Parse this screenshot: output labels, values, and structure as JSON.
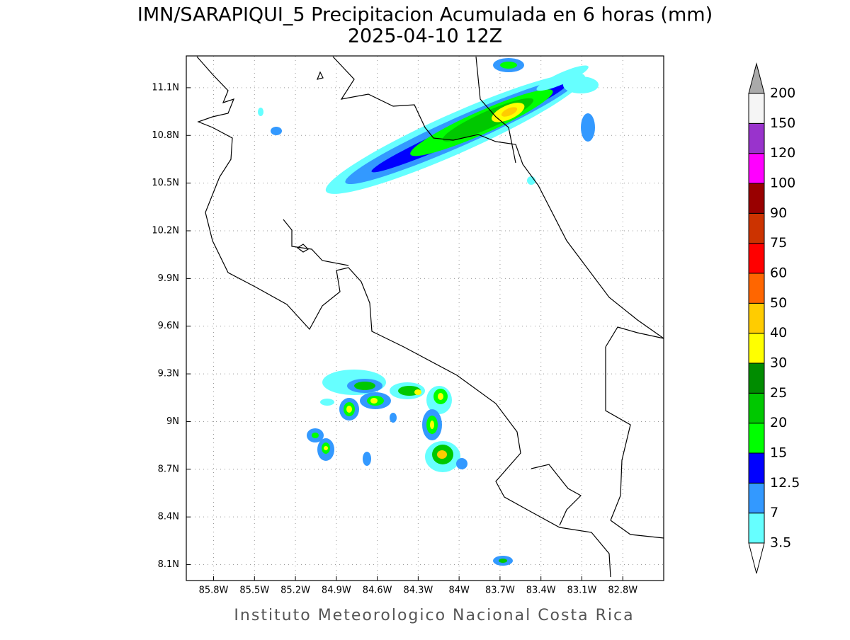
{
  "chart_data": {
    "type": "map",
    "title": "IMN/SARAPIQUI_5 Precipitacion Acumulada en 6 horas (mm)",
    "subtitle": "2025-04-10 12Z",
    "footer": "Instituto Meteorologico Nacional Costa Rica",
    "xlim": [
      -86.0,
      -82.5
    ],
    "ylim": [
      8.0,
      11.3
    ],
    "xticks": [
      {
        "value": -85.8,
        "label": "85.8W"
      },
      {
        "value": -85.5,
        "label": "85.5W"
      },
      {
        "value": -85.2,
        "label": "85.2W"
      },
      {
        "value": -84.9,
        "label": "84.9W"
      },
      {
        "value": -84.6,
        "label": "84.6W"
      },
      {
        "value": -84.3,
        "label": "84.3W"
      },
      {
        "value": -84.0,
        "label": "84W"
      },
      {
        "value": -83.7,
        "label": "83.7W"
      },
      {
        "value": -83.4,
        "label": "83.4W"
      },
      {
        "value": -83.1,
        "label": "83.1W"
      },
      {
        "value": -82.8,
        "label": "82.8W"
      }
    ],
    "yticks": [
      {
        "value": 8.1,
        "label": "8.1N"
      },
      {
        "value": 8.4,
        "label": "8.4N"
      },
      {
        "value": 8.7,
        "label": "8.7N"
      },
      {
        "value": 9.0,
        "label": "9N"
      },
      {
        "value": 9.3,
        "label": "9.3N"
      },
      {
        "value": 9.6,
        "label": "9.6N"
      },
      {
        "value": 9.9,
        "label": "9.9N"
      },
      {
        "value": 10.2,
        "label": "10.2N"
      },
      {
        "value": 10.5,
        "label": "10.5N"
      },
      {
        "value": 10.8,
        "label": "10.8N"
      },
      {
        "value": 11.1,
        "label": "11.1N"
      }
    ],
    "grid": true,
    "colorbar": {
      "levels": [
        3.5,
        7,
        12.5,
        15,
        20,
        25,
        30,
        40,
        50,
        60,
        75,
        90,
        100,
        120,
        150,
        200
      ],
      "colors": [
        "#66ffff",
        "#3399ff",
        "#0000ff",
        "#00ff00",
        "#00c800",
        "#008c00",
        "#ffff00",
        "#ffcc00",
        "#ff6600",
        "#ff0000",
        "#cc3300",
        "#990000",
        "#ff00ff",
        "#9933cc",
        "#f5f5f5"
      ],
      "over_color": "#aaaaaa",
      "under_color": "#ffffff"
    }
  }
}
